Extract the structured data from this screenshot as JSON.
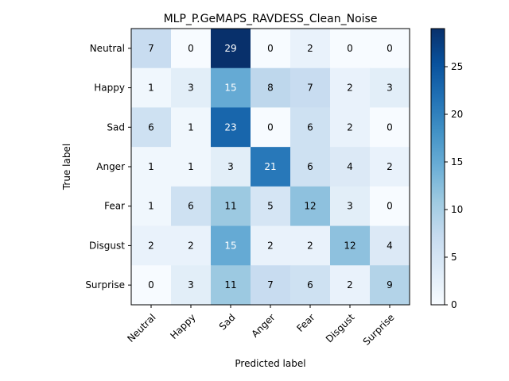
{
  "chart_data": {
    "type": "heatmap",
    "title": "MLP_P.GeMAPS_RAVDESS_Clean_Noise",
    "xlabel": "Predicted label",
    "ylabel": "True label",
    "x_categories": [
      "Neutral",
      "Happy",
      "Sad",
      "Anger",
      "Fear",
      "Disgust",
      "Surprise"
    ],
    "y_categories": [
      "Neutral",
      "Happy",
      "Sad",
      "Anger",
      "Fear",
      "Disgust",
      "Surprise"
    ],
    "values": [
      [
        7,
        0,
        29,
        0,
        2,
        0,
        0
      ],
      [
        1,
        3,
        15,
        8,
        7,
        2,
        3
      ],
      [
        6,
        1,
        23,
        0,
        6,
        2,
        0
      ],
      [
        1,
        1,
        3,
        21,
        6,
        4,
        2
      ],
      [
        1,
        6,
        11,
        5,
        12,
        3,
        0
      ],
      [
        2,
        2,
        15,
        2,
        2,
        12,
        4
      ],
      [
        0,
        3,
        11,
        7,
        6,
        2,
        9
      ]
    ],
    "colormap": "Blues",
    "value_range": [
      0,
      29
    ],
    "colorbar_ticks": [
      0,
      5,
      10,
      15,
      20,
      25
    ],
    "x_tick_rotation": "45deg",
    "grid": false
  }
}
